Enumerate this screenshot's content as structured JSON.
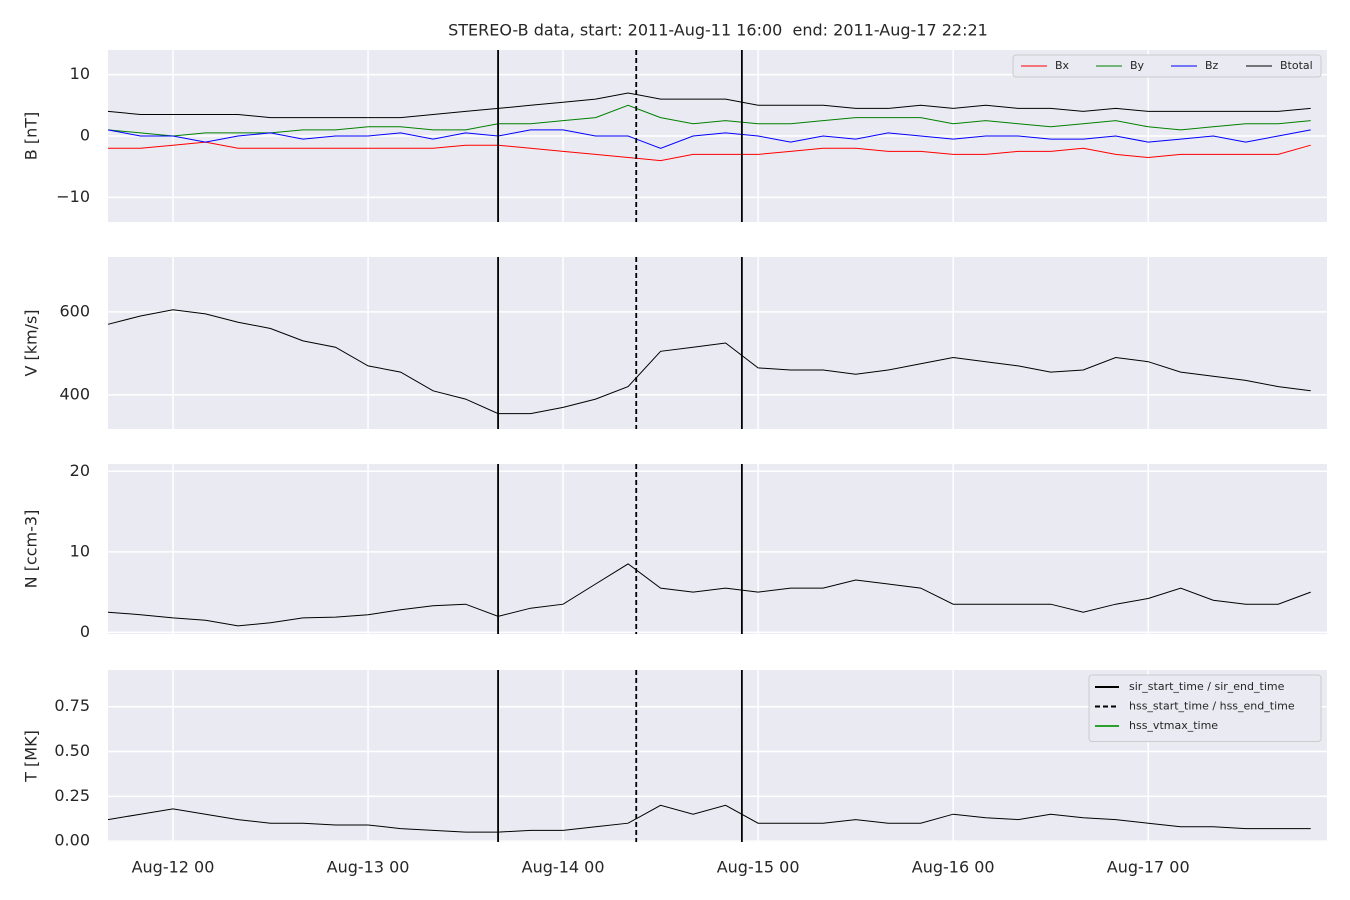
{
  "chart_data": [
    {
      "type": "line",
      "title": "STEREO-B data, start: 2011-Aug-11 16:00  end: 2011-Aug-17 22:21",
      "ylabel": "B [nT]",
      "x": [
        "Aug-11 16",
        "Aug-11 20",
        "Aug-12 00",
        "Aug-12 04",
        "Aug-12 08",
        "Aug-12 12",
        "Aug-12 16",
        "Aug-12 20",
        "Aug-13 00",
        "Aug-13 04",
        "Aug-13 08",
        "Aug-13 12",
        "Aug-13 16",
        "Aug-13 20",
        "Aug-14 00",
        "Aug-14 04",
        "Aug-14 08",
        "Aug-14 12",
        "Aug-14 16",
        "Aug-14 20",
        "Aug-15 00",
        "Aug-15 04",
        "Aug-15 08",
        "Aug-15 12",
        "Aug-15 16",
        "Aug-15 20",
        "Aug-16 00",
        "Aug-16 04",
        "Aug-16 08",
        "Aug-16 12",
        "Aug-16 16",
        "Aug-16 20",
        "Aug-17 00",
        "Aug-17 04",
        "Aug-17 08",
        "Aug-17 12",
        "Aug-17 16",
        "Aug-17 20"
      ],
      "series": [
        {
          "name": "Bx",
          "color": "#ff0000",
          "values": [
            -2,
            -2,
            -1.5,
            -1,
            -2,
            -2,
            -2,
            -2,
            -2,
            -2,
            -2,
            -1.5,
            -1.5,
            -2,
            -2.5,
            -3,
            -3.5,
            -4,
            -3,
            -3,
            -3,
            -2.5,
            -2,
            -2,
            -2.5,
            -2.5,
            -3,
            -3,
            -2.5,
            -2.5,
            -2,
            -3,
            -3.5,
            -3,
            -3,
            -3,
            -3,
            -1.5
          ]
        },
        {
          "name": "By",
          "color": "#008000",
          "values": [
            1,
            0.5,
            0,
            0.5,
            0.5,
            0.5,
            1,
            1,
            1.5,
            1.5,
            1,
            1,
            2,
            2,
            2.5,
            3,
            5,
            3,
            2,
            2.5,
            2,
            2,
            2.5,
            3,
            3,
            3,
            2,
            2.5,
            2,
            1.5,
            2,
            2.5,
            1.5,
            1,
            1.5,
            2,
            2,
            2.5
          ]
        },
        {
          "name": "Bz",
          "color": "#0000ff",
          "values": [
            1,
            0,
            0,
            -1,
            0,
            0.5,
            -0.5,
            0,
            0,
            0.5,
            -0.5,
            0.5,
            0,
            1,
            1,
            0,
            0,
            -2,
            0,
            0.5,
            0,
            -1,
            0,
            -0.5,
            0.5,
            0,
            -0.5,
            0,
            0,
            -0.5,
            -0.5,
            0,
            -1,
            -0.5,
            0,
            -1,
            0,
            1
          ]
        },
        {
          "name": "Btotal",
          "color": "#000000",
          "values": [
            4,
            3.5,
            3.5,
            3.5,
            3.5,
            3,
            3,
            3,
            3,
            3,
            3.5,
            4,
            4.5,
            5,
            5.5,
            6,
            7,
            6,
            6,
            6,
            5,
            5,
            5,
            4.5,
            4.5,
            5,
            4.5,
            5,
            4.5,
            4.5,
            4,
            4.5,
            4,
            4,
            4,
            4,
            4,
            4.5
          ]
        }
      ],
      "ylim": [
        -14,
        14
      ],
      "yticks": [
        {
          "value": -10,
          "label": "−10"
        },
        0,
        10
      ],
      "grid": true,
      "legend": "upper right"
    },
    {
      "type": "line",
      "ylabel": "V [km/s]",
      "x": [
        "Aug-11 16",
        "Aug-11 20",
        "Aug-12 00",
        "Aug-12 04",
        "Aug-12 08",
        "Aug-12 12",
        "Aug-12 16",
        "Aug-12 20",
        "Aug-13 00",
        "Aug-13 04",
        "Aug-13 08",
        "Aug-13 12",
        "Aug-13 16",
        "Aug-13 20",
        "Aug-14 00",
        "Aug-14 04",
        "Aug-14 08",
        "Aug-14 12",
        "Aug-14 16",
        "Aug-14 20",
        "Aug-15 00",
        "Aug-15 04",
        "Aug-15 08",
        "Aug-15 12",
        "Aug-15 16",
        "Aug-15 20",
        "Aug-16 00",
        "Aug-16 04",
        "Aug-16 08",
        "Aug-16 12",
        "Aug-16 16",
        "Aug-16 20",
        "Aug-17 00",
        "Aug-17 04",
        "Aug-17 08",
        "Aug-17 12",
        "Aug-17 16",
        "Aug-17 20"
      ],
      "series": [
        {
          "color": "#000000",
          "values": [
            570,
            590,
            605,
            595,
            575,
            560,
            530,
            515,
            470,
            455,
            410,
            390,
            355,
            355,
            370,
            390,
            420,
            505,
            515,
            525,
            465,
            460,
            460,
            450,
            460,
            475,
            490,
            480,
            470,
            455,
            460,
            490,
            480,
            455,
            445,
            435,
            420,
            410
          ]
        }
      ],
      "ylim": [
        318,
        732
      ],
      "yticks": [
        400,
        600
      ],
      "grid": true
    },
    {
      "type": "line",
      "ylabel": "N [ccm-3]",
      "x": [
        "Aug-11 16",
        "Aug-11 20",
        "Aug-12 00",
        "Aug-12 04",
        "Aug-12 08",
        "Aug-12 12",
        "Aug-12 16",
        "Aug-12 20",
        "Aug-13 00",
        "Aug-13 04",
        "Aug-13 08",
        "Aug-13 12",
        "Aug-13 16",
        "Aug-13 20",
        "Aug-14 00",
        "Aug-14 04",
        "Aug-14 08",
        "Aug-14 12",
        "Aug-14 16",
        "Aug-14 20",
        "Aug-15 00",
        "Aug-15 04",
        "Aug-15 08",
        "Aug-15 12",
        "Aug-15 16",
        "Aug-15 20",
        "Aug-16 00",
        "Aug-16 04",
        "Aug-16 08",
        "Aug-16 12",
        "Aug-16 16",
        "Aug-16 20",
        "Aug-17 00",
        "Aug-17 04",
        "Aug-17 08",
        "Aug-17 12",
        "Aug-17 16",
        "Aug-17 20"
      ],
      "series": [
        {
          "color": "#000000",
          "values": [
            2.5,
            2.2,
            1.8,
            1.5,
            0.8,
            1.2,
            1.8,
            1.9,
            2.2,
            2.8,
            3.3,
            3.5,
            2,
            3,
            3.5,
            6,
            8.5,
            5.5,
            5,
            5.5,
            5,
            5.5,
            5.5,
            6.5,
            6,
            5.5,
            3.5,
            3.5,
            3.5,
            3.5,
            2.5,
            3.5,
            4.2,
            5.5,
            4,
            3.5,
            3.5,
            5
          ]
        }
      ],
      "ylim": [
        -0.2,
        20.9
      ],
      "yticks": [
        0,
        10,
        20
      ],
      "grid": true
    },
    {
      "type": "line",
      "ylabel": "T [MK]",
      "x": [
        "Aug-11 16",
        "Aug-11 20",
        "Aug-12 00",
        "Aug-12 04",
        "Aug-12 08",
        "Aug-12 12",
        "Aug-12 16",
        "Aug-12 20",
        "Aug-13 00",
        "Aug-13 04",
        "Aug-13 08",
        "Aug-13 12",
        "Aug-13 16",
        "Aug-13 20",
        "Aug-14 00",
        "Aug-14 04",
        "Aug-14 08",
        "Aug-14 12",
        "Aug-14 16",
        "Aug-14 20",
        "Aug-15 00",
        "Aug-15 04",
        "Aug-15 08",
        "Aug-15 12",
        "Aug-15 16",
        "Aug-15 20",
        "Aug-16 00",
        "Aug-16 04",
        "Aug-16 08",
        "Aug-16 12",
        "Aug-16 16",
        "Aug-16 20",
        "Aug-17 00",
        "Aug-17 04",
        "Aug-17 08",
        "Aug-17 12",
        "Aug-17 16",
        "Aug-17 20"
      ],
      "series": [
        {
          "color": "#000000",
          "values": [
            0.12,
            0.15,
            0.18,
            0.15,
            0.12,
            0.1,
            0.1,
            0.09,
            0.09,
            0.07,
            0.06,
            0.05,
            0.05,
            0.06,
            0.06,
            0.08,
            0.1,
            0.2,
            0.15,
            0.2,
            0.1,
            0.1,
            0.1,
            0.12,
            0.1,
            0.1,
            0.15,
            0.13,
            0.12,
            0.15,
            0.13,
            0.12,
            0.1,
            0.08,
            0.08,
            0.07,
            0.07,
            0.07
          ]
        }
      ],
      "ylim": [
        -0.005,
        0.955
      ],
      "yticks": [
        {
          "value": 0,
          "label": "0.00"
        },
        {
          "value": 0.25,
          "label": "0.25"
        },
        {
          "value": 0.5,
          "label": "0.50"
        },
        {
          "value": 0.75,
          "label": "0.75"
        }
      ],
      "grid": true,
      "xlim": [
        "Aug-11 16",
        "Aug-17 22"
      ],
      "xticks": [
        "Aug-12 00",
        "Aug-13 00",
        "Aug-14 00",
        "Aug-15 00",
        "Aug-16 00",
        "Aug-17 00"
      ],
      "vlines": [
        {
          "name": "sir_start_time / sir_end_time",
          "color": "#000000",
          "style": "solid",
          "x": [
            "Aug-13 16",
            "Aug-14 22"
          ]
        },
        {
          "name": "hss_start_time / hss_end_time",
          "color": "#000000",
          "style": "dashed",
          "x": [
            "Aug-14 09"
          ]
        },
        {
          "name": "hss_vtmax_time",
          "color": "#2ca02c",
          "style": "solid",
          "x": []
        }
      ],
      "legend": "upper right"
    }
  ]
}
